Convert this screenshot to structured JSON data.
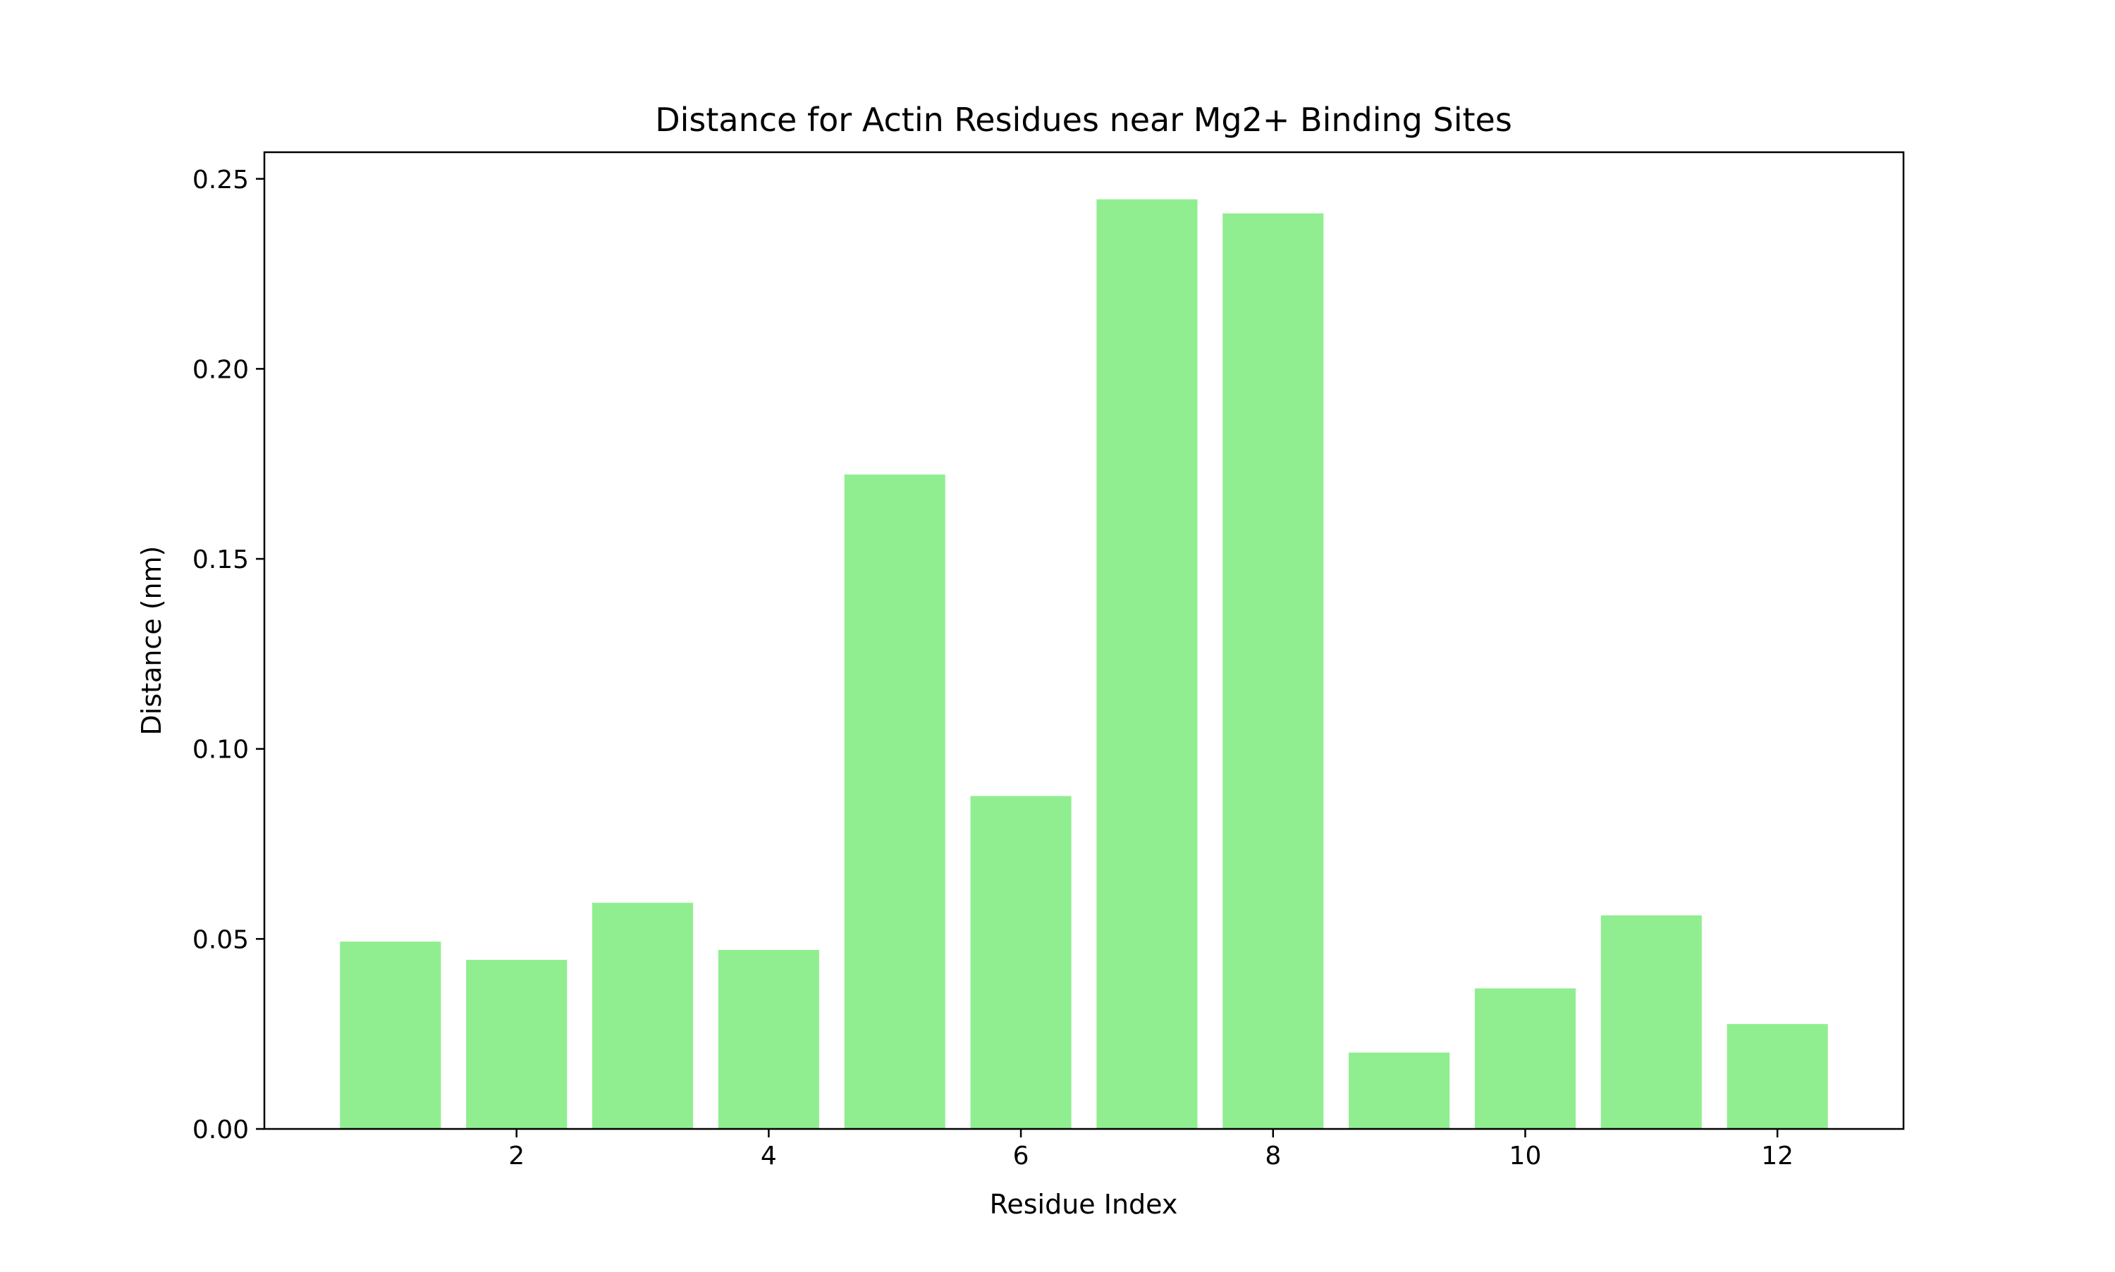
{
  "chart_data": {
    "type": "bar",
    "title": "Distance for Actin Residues near Mg2+ Binding Sites",
    "xlabel": "Residue Index",
    "ylabel": "Distance (nm)",
    "x": [
      1,
      2,
      3,
      4,
      5,
      6,
      7,
      8,
      9,
      10,
      11,
      12
    ],
    "values": [
      0.0493,
      0.0445,
      0.0595,
      0.0471,
      0.1722,
      0.0876,
      0.2446,
      0.2409,
      0.0201,
      0.037,
      0.0562,
      0.0276
    ],
    "xlim": [
      0.0,
      13.0
    ],
    "ylim": [
      0.0,
      0.257
    ],
    "xticks": [
      2,
      4,
      6,
      8,
      10,
      12
    ],
    "xtick_labels": [
      "2",
      "4",
      "6",
      "8",
      "10",
      "12"
    ],
    "yticks": [
      0.0,
      0.05,
      0.1,
      0.15,
      0.2,
      0.25
    ],
    "ytick_labels": [
      "0.00",
      "0.05",
      "0.10",
      "0.15",
      "0.20",
      "0.25"
    ],
    "bar_color": "#90ee90",
    "grid": false,
    "legend": "none"
  }
}
